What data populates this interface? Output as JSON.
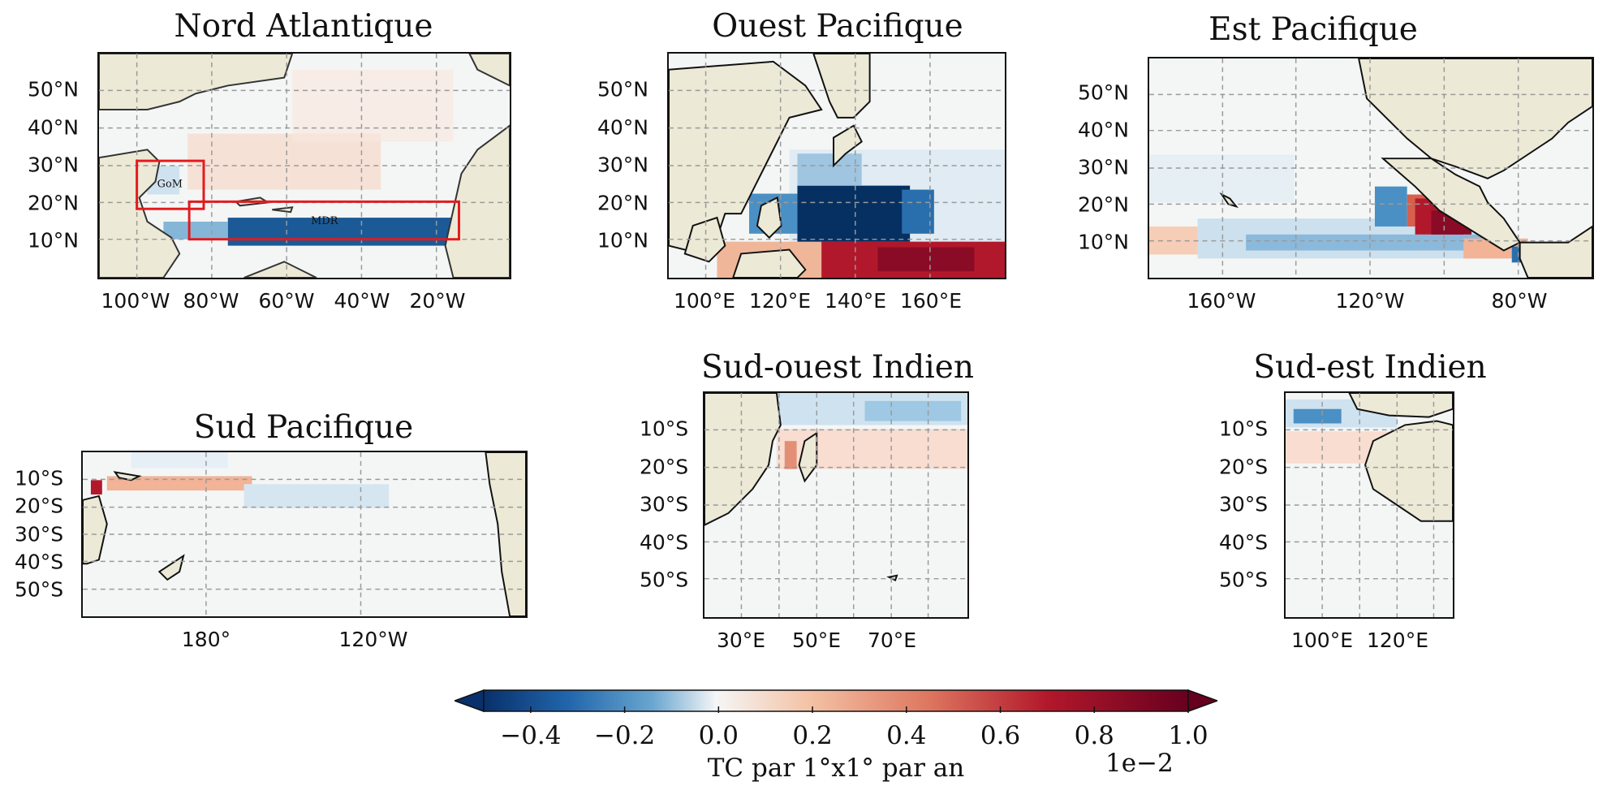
{
  "panels": {
    "na": {
      "title": "Nord Atlantique",
      "lat_ticks": [
        "50°N",
        "40°N",
        "30°N",
        "20°N",
        "10°N"
      ],
      "lon_ticks": [
        "100°W",
        "80°W",
        "60°W",
        "40°W",
        "20°W"
      ],
      "boxes": [
        {
          "label": "GoM"
        },
        {
          "label": "MDR"
        }
      ]
    },
    "wp": {
      "title": "Ouest Pacifique",
      "lat_ticks": [
        "50°N",
        "40°N",
        "30°N",
        "20°N",
        "10°N"
      ],
      "lon_ticks": [
        "100°E",
        "120°E",
        "140°E",
        "160°E"
      ]
    },
    "ep": {
      "title": "Est Pacifique",
      "lat_ticks": [
        "50°N",
        "40°N",
        "30°N",
        "20°N",
        "10°N"
      ],
      "lon_ticks": [
        "160°W",
        "120°W",
        "80°W"
      ]
    },
    "sp": {
      "title": "Sud Pacifique",
      "lat_ticks": [
        "10°S",
        "20°S",
        "30°S",
        "40°S",
        "50°S"
      ],
      "lon_ticks": [
        "180°",
        "120°W"
      ]
    },
    "swi": {
      "title": "Sud-ouest Indien",
      "lat_ticks": [
        "10°S",
        "20°S",
        "30°S",
        "40°S",
        "50°S"
      ],
      "lon_ticks": [
        "30°E",
        "50°E",
        "70°E"
      ]
    },
    "sei": {
      "title": "Sud-est Indien",
      "lat_ticks": [
        "10°S",
        "20°S",
        "30°S",
        "40°S",
        "50°S"
      ],
      "lon_ticks": [
        "100°E",
        "120°E"
      ]
    }
  },
  "colorbar": {
    "ticks": [
      "−0.4",
      "−0.2",
      "0.0",
      "0.2",
      "0.4",
      "0.6",
      "0.8",
      "1.0"
    ],
    "tick_values": [
      -0.4,
      -0.2,
      0.0,
      0.2,
      0.4,
      0.6,
      0.8,
      1.0
    ],
    "range": [
      -0.5,
      1.0
    ],
    "label": "TC par 1°x1° par an",
    "exponent": "1e−2",
    "colormap": "RdBu_r",
    "extend": "both"
  },
  "colors": {
    "land": "#ece9d6",
    "ocean": "#f4f6f6",
    "box": "#e41a1c",
    "grid": "#9a9a9a"
  }
}
